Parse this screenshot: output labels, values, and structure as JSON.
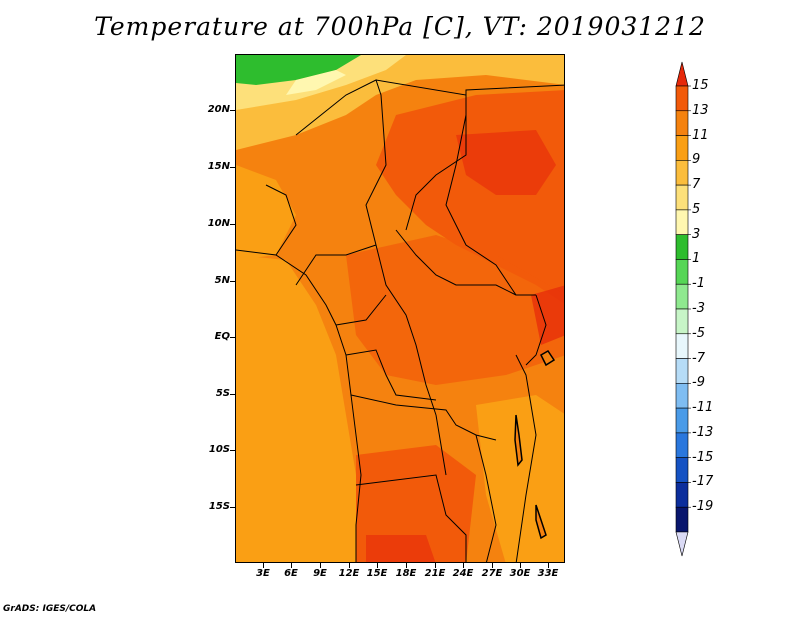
{
  "title": "Temperature at 700hPa [C], VT: 2019031212",
  "credit": "GrADS: IGES/COLA",
  "map": {
    "lat_labels": [
      "20N",
      "15N",
      "10N",
      "5N",
      "EQ",
      "5S",
      "10S",
      "15S"
    ],
    "lon_labels": [
      "3E",
      "6E",
      "9E",
      "12E",
      "15E",
      "18E",
      "21E",
      "24E",
      "27E",
      "30E",
      "33E"
    ]
  },
  "colorbar": {
    "levels": [
      "15",
      "13",
      "11",
      "9",
      "7",
      "5",
      "3",
      "1",
      "-1",
      "-3",
      "-5",
      "-7",
      "-9",
      "-11",
      "-13",
      "-15",
      "-17",
      "-19"
    ],
    "colors": [
      "#e6280a",
      "#f25a0a",
      "#f5820f",
      "#fa9f14",
      "#fbbd3c",
      "#fde07a",
      "#fff7b0",
      "#2ebd2e",
      "#56d656",
      "#8fe98f",
      "#c7f5c7",
      "#e8f7fc",
      "#b6dcf7",
      "#7fbdf2",
      "#4a9be8",
      "#2a77dd",
      "#1552c3",
      "#0c2e9c",
      "#09166d",
      "#dadaf5"
    ]
  }
}
